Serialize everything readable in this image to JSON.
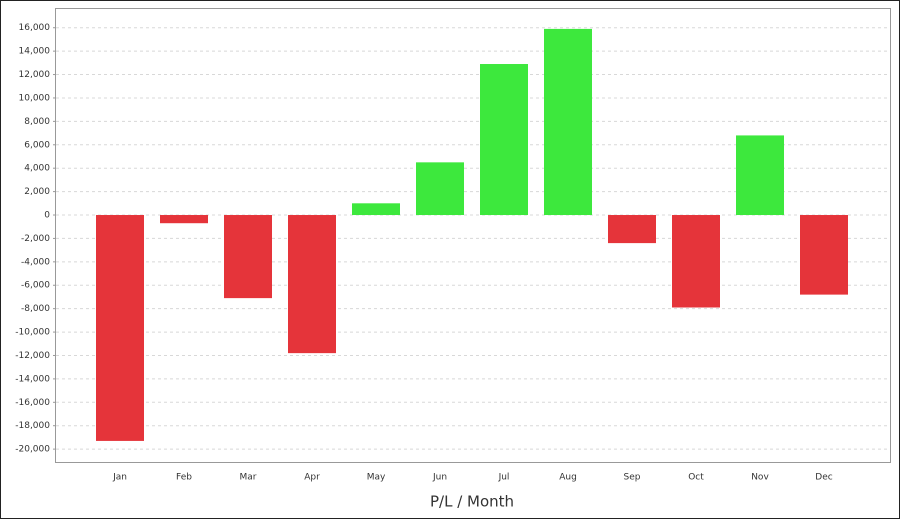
{
  "chart_data": {
    "type": "bar",
    "x_label": "P/L / Month",
    "categories": [
      "Jan",
      "Feb",
      "Mar",
      "Apr",
      "May",
      "Jun",
      "Jul",
      "Aug",
      "Sep",
      "Oct",
      "Nov",
      "Dec"
    ],
    "values": [
      -19300,
      -700,
      -7100,
      -11800,
      1000,
      4500,
      12900,
      15900,
      -2400,
      -7900,
      6800,
      -6800
    ],
    "positive_color": "#3de83d",
    "negative_color": "#e5343a",
    "ylim": [
      -21100,
      17600
    ],
    "yticks": [
      {
        "value": -20000,
        "label": "-20,000"
      },
      {
        "value": -18000,
        "label": "-18,000"
      },
      {
        "value": -16000,
        "label": "-16,000"
      },
      {
        "value": -14000,
        "label": "-14,000"
      },
      {
        "value": -12000,
        "label": "-12,000"
      },
      {
        "value": -10000,
        "label": "-10,000"
      },
      {
        "value": -8000,
        "label": "-8,000"
      },
      {
        "value": -6000,
        "label": "-6,000"
      },
      {
        "value": -4000,
        "label": "-4,000"
      },
      {
        "value": -2000,
        "label": "-2,000"
      },
      0,
      {
        "value": 2000,
        "label": "2,000"
      },
      {
        "value": 4000,
        "label": "4,000"
      },
      {
        "value": 6000,
        "label": "6,000"
      },
      {
        "value": 8000,
        "label": "8,000"
      },
      {
        "value": 10000,
        "label": "10,000"
      },
      {
        "value": 12000,
        "label": "12,000"
      },
      {
        "value": 14000,
        "label": "14,000"
      },
      {
        "value": 16000,
        "label": "16,000"
      }
    ],
    "grid": true
  }
}
